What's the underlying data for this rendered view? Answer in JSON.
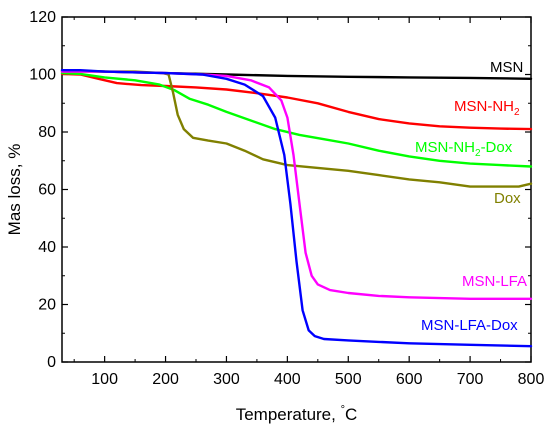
{
  "chart_data": {
    "type": "line",
    "title": "",
    "xlabel": "Temperature, ",
    "xlabel_unit": "°C",
    "ylabel": "Mas loss, %",
    "xlim": [
      30,
      800
    ],
    "ylim": [
      0,
      120
    ],
    "x_ticks": [
      100,
      200,
      300,
      400,
      500,
      600,
      700,
      800
    ],
    "y_ticks": [
      0,
      20,
      40,
      60,
      80,
      100,
      120
    ],
    "grid": false,
    "legend": "inline labels at right",
    "series": [
      {
        "name": "MSN",
        "color": "#000000",
        "points": [
          [
            30,
            101.5
          ],
          [
            100,
            101.0
          ],
          [
            200,
            100.5
          ],
          [
            300,
            100.0
          ],
          [
            400,
            99.5
          ],
          [
            500,
            99.2
          ],
          [
            600,
            99.0
          ],
          [
            700,
            98.8
          ],
          [
            800,
            98.5
          ]
        ]
      },
      {
        "name": "MSN-NH2",
        "color": "#ff0000",
        "points": [
          [
            30,
            100.2
          ],
          [
            60,
            100.0
          ],
          [
            90,
            98.5
          ],
          [
            120,
            97.0
          ],
          [
            160,
            96.3
          ],
          [
            200,
            96.0
          ],
          [
            250,
            95.5
          ],
          [
            300,
            94.8
          ],
          [
            350,
            93.5
          ],
          [
            400,
            92.0
          ],
          [
            450,
            90.0
          ],
          [
            500,
            87.0
          ],
          [
            550,
            84.5
          ],
          [
            600,
            83.0
          ],
          [
            650,
            82.0
          ],
          [
            700,
            81.5
          ],
          [
            750,
            81.2
          ],
          [
            800,
            81.0
          ]
        ]
      },
      {
        "name": "MSN-NH2-Dox",
        "color": "#00ff00",
        "points": [
          [
            30,
            100.5
          ],
          [
            60,
            100.2
          ],
          [
            100,
            99.0
          ],
          [
            150,
            98.0
          ],
          [
            190,
            96.5
          ],
          [
            215,
            94.5
          ],
          [
            240,
            91.5
          ],
          [
            270,
            89.5
          ],
          [
            300,
            87.0
          ],
          [
            340,
            84.0
          ],
          [
            380,
            81.0
          ],
          [
            420,
            79.0
          ],
          [
            460,
            77.5
          ],
          [
            500,
            76.0
          ],
          [
            550,
            73.5
          ],
          [
            600,
            71.5
          ],
          [
            650,
            70.0
          ],
          [
            700,
            69.0
          ],
          [
            750,
            68.5
          ],
          [
            800,
            68.0
          ]
        ]
      },
      {
        "name": "Dox",
        "color": "#808000",
        "points": [
          [
            30,
            101.0
          ],
          [
            100,
            101.0
          ],
          [
            150,
            101.0
          ],
          [
            195,
            100.5
          ],
          [
            205,
            100.0
          ],
          [
            212,
            94.0
          ],
          [
            220,
            86.0
          ],
          [
            230,
            81.0
          ],
          [
            245,
            78.0
          ],
          [
            270,
            77.0
          ],
          [
            300,
            76.0
          ],
          [
            330,
            73.5
          ],
          [
            360,
            70.5
          ],
          [
            400,
            68.5
          ],
          [
            450,
            67.5
          ],
          [
            500,
            66.5
          ],
          [
            550,
            65.0
          ],
          [
            600,
            63.5
          ],
          [
            650,
            62.5
          ],
          [
            700,
            61.0
          ],
          [
            750,
            61.0
          ],
          [
            780,
            61.0
          ],
          [
            800,
            62.0
          ]
        ]
      },
      {
        "name": "MSN-LFA",
        "color": "#ff00ff",
        "points": [
          [
            30,
            101.0
          ],
          [
            100,
            101.0
          ],
          [
            200,
            100.5
          ],
          [
            260,
            100.0
          ],
          [
            300,
            99.5
          ],
          [
            340,
            98.0
          ],
          [
            370,
            95.5
          ],
          [
            390,
            91.0
          ],
          [
            400,
            85.0
          ],
          [
            410,
            72.0
          ],
          [
            420,
            55.0
          ],
          [
            430,
            38.0
          ],
          [
            440,
            30.0
          ],
          [
            450,
            27.0
          ],
          [
            470,
            25.0
          ],
          [
            500,
            24.0
          ],
          [
            550,
            23.0
          ],
          [
            600,
            22.5
          ],
          [
            700,
            22.0
          ],
          [
            800,
            22.0
          ]
        ]
      },
      {
        "name": "MSN-LFA-Dox",
        "color": "#0000ff",
        "points": [
          [
            30,
            101.5
          ],
          [
            60,
            101.5
          ],
          [
            100,
            101.0
          ],
          [
            200,
            100.5
          ],
          [
            260,
            100.0
          ],
          [
            300,
            98.5
          ],
          [
            330,
            96.5
          ],
          [
            360,
            92.5
          ],
          [
            380,
            85.0
          ],
          [
            395,
            72.0
          ],
          [
            405,
            55.0
          ],
          [
            415,
            35.0
          ],
          [
            425,
            18.0
          ],
          [
            435,
            11.0
          ],
          [
            445,
            9.0
          ],
          [
            460,
            8.0
          ],
          [
            500,
            7.5
          ],
          [
            550,
            7.0
          ],
          [
            600,
            6.5
          ],
          [
            700,
            6.0
          ],
          [
            800,
            5.5
          ]
        ]
      }
    ]
  },
  "labels": {
    "msn": {
      "text": "MSN",
      "color": "#000000"
    },
    "msn_nh2": {
      "text": "MSN-NH",
      "sub": "2",
      "color": "#ff0000"
    },
    "msn_nh2_dox": {
      "text": "MSN-NH",
      "sub": "2",
      "tail": "-Dox",
      "color": "#00ff00"
    },
    "dox": {
      "text": "Dox",
      "color": "#808000"
    },
    "msn_lfa": {
      "text": "MSN-LFA",
      "color": "#ff00ff"
    },
    "msn_lfa_dox": {
      "text": "MSN-LFA-Dox",
      "color": "#0000ff"
    }
  }
}
